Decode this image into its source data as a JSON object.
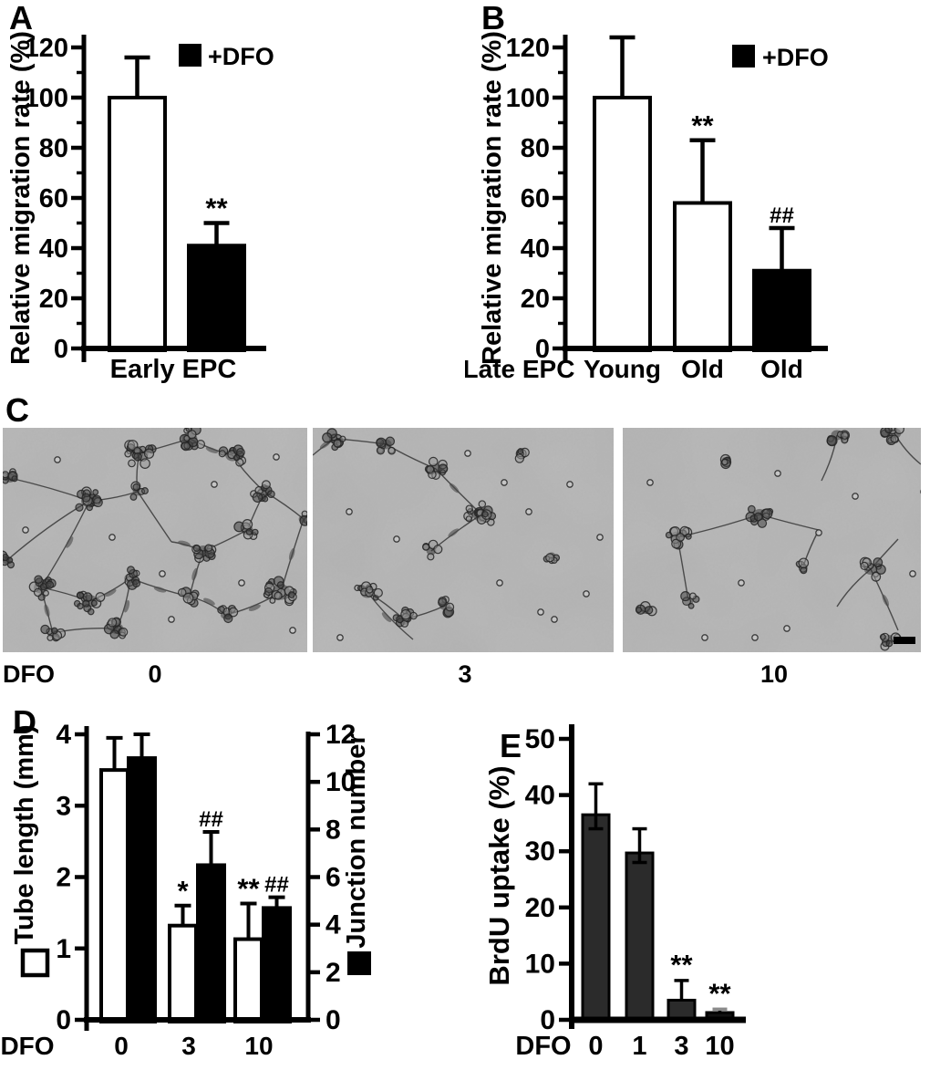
{
  "figure": {
    "panel_letters": {
      "a": "A",
      "b": "B",
      "c": "C",
      "d": "D",
      "e": "E"
    }
  },
  "colors": {
    "ink": "#000000",
    "bar_white": "#ffffff",
    "bar_black": "#000000",
    "bar_dark_gray": "#2b2b2b",
    "micrograph_bg": "#b2b2b2",
    "small_cap_gray": "#8a8a8a"
  },
  "micrographs": {
    "row_label": "DFO",
    "doses": [
      "0",
      "3",
      "10"
    ],
    "scale_bar": "present-bottom-right"
  },
  "chart_data": [
    {
      "id": "A",
      "type": "bar",
      "ylabel": "Relative migration rate (%)",
      "ylim": [
        0,
        120
      ],
      "yticks": [
        0,
        20,
        40,
        60,
        80,
        100,
        120
      ],
      "yticks_minor": [
        10,
        30,
        50,
        70,
        90,
        110
      ],
      "xlabel": "Early EPC",
      "legend": [
        {
          "label": "+DFO",
          "fill": "#000000"
        }
      ],
      "bars": [
        {
          "label": "",
          "value": 100,
          "error_up": 16,
          "fill": "#ffffff",
          "sig": ""
        },
        {
          "label": "",
          "value": 41,
          "error_up": 9,
          "fill": "#000000",
          "sig": "**"
        }
      ]
    },
    {
      "id": "B",
      "type": "bar",
      "ylabel": "Relative migration rate (%)",
      "ylim": [
        0,
        120
      ],
      "yticks": [
        0,
        20,
        40,
        60,
        80,
        100,
        120
      ],
      "yticks_minor": [
        10,
        30,
        50,
        70,
        90,
        110
      ],
      "xlabel": "Late EPC",
      "legend": [
        {
          "label": "+DFO",
          "fill": "#000000"
        }
      ],
      "bars": [
        {
          "label": "Young",
          "value": 100,
          "error_up": 24,
          "fill": "#ffffff",
          "sig": ""
        },
        {
          "label": "Old",
          "value": 58,
          "error_up": 25,
          "fill": "#ffffff",
          "sig": "**"
        },
        {
          "label": "Old",
          "value": 31,
          "error_up": 17,
          "fill": "#000000",
          "sig": "##"
        }
      ]
    },
    {
      "id": "D",
      "type": "grouped-bar-dual-axis",
      "ylabel_left": "Tube length (mm)",
      "ylabel_right": "Junction number",
      "ylim_left": [
        0,
        4
      ],
      "ylim_right": [
        0,
        12
      ],
      "yticks_left": [
        0,
        1,
        2,
        3,
        4
      ],
      "yticks_right": [
        0,
        2,
        4,
        6,
        8,
        10,
        12
      ],
      "xlabel": "DFO",
      "categories": [
        "0",
        "3",
        "10"
      ],
      "series": [
        {
          "name": "Tube length (mm)",
          "axis": "left",
          "fill": "#ffffff",
          "values": [
            3.5,
            1.32,
            1.13
          ],
          "errors_up": [
            0.45,
            0.28,
            0.5
          ],
          "sig": [
            "",
            "*",
            "**"
          ]
        },
        {
          "name": "Junction number",
          "axis": "right",
          "fill": "#000000",
          "values": [
            11,
            6.5,
            4.7
          ],
          "errors_up": [
            1.0,
            1.4,
            0.45
          ],
          "sig": [
            "",
            "##",
            "##"
          ]
        }
      ]
    },
    {
      "id": "E",
      "type": "bar",
      "ylabel": "BrdU uptake (%)",
      "ylim": [
        0,
        50
      ],
      "yticks": [
        0,
        10,
        20,
        30,
        40,
        50
      ],
      "xlabel": "DFO",
      "categories": [
        "0",
        "1",
        "3",
        "10"
      ],
      "bars": [
        {
          "label": "0",
          "value": 36.5,
          "error_up": 5.5,
          "error_down": 2.5,
          "fill": "#2b2b2b",
          "sig": ""
        },
        {
          "label": "1",
          "value": 29.7,
          "error_up": 4.3,
          "error_down": 1.7,
          "fill": "#2b2b2b",
          "sig": ""
        },
        {
          "label": "3",
          "value": 3.5,
          "error_up": 3.5,
          "fill": "#2b2b2b",
          "sig": "**"
        },
        {
          "label": "10",
          "value": 1.3,
          "error_up": 0.6,
          "fill": "#111111",
          "sig": "**",
          "cap_color": "#8a8a8a"
        }
      ]
    }
  ]
}
